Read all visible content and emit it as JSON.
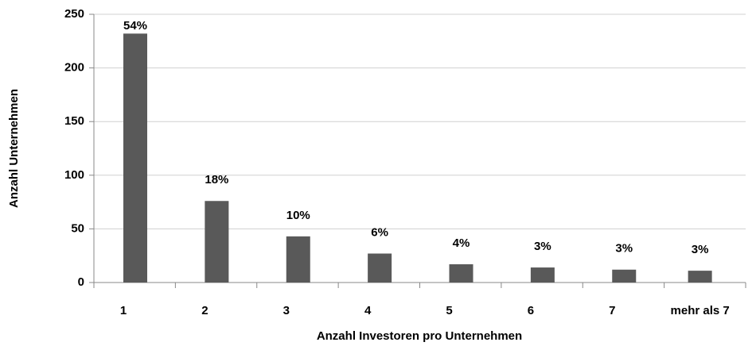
{
  "chart_data": {
    "type": "bar",
    "x_label": "Anzahl Investoren pro Unternehmen",
    "y_label": "Anzahl Unternehmen",
    "categories": [
      "1",
      "2",
      "3",
      "4",
      "5",
      "6",
      "7",
      "mehr als 7"
    ],
    "values": [
      232,
      76,
      43,
      27,
      17,
      14,
      12,
      11
    ],
    "annotations": [
      "54%",
      "18%",
      "10%",
      "6%",
      "4%",
      "3%",
      "3%",
      "3%"
    ],
    "color": "#595959",
    "ylim": [
      0,
      250
    ],
    "yticks": [
      0,
      50,
      100,
      150,
      200,
      250
    ],
    "grid": true
  }
}
